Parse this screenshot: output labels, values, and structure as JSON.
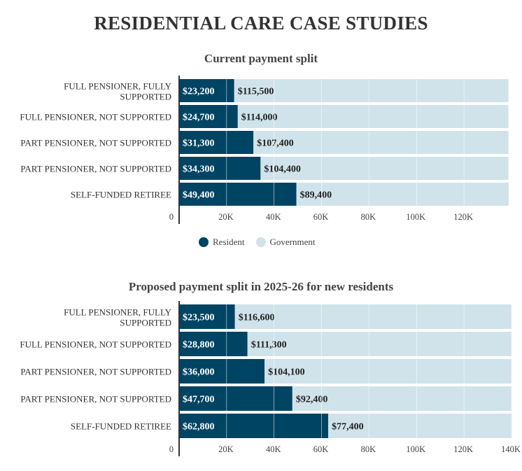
{
  "title": "RESIDENTIAL CARE CASE STUDIES",
  "colors": {
    "resident": "#004464",
    "government": "#d0e3eb"
  },
  "legend": {
    "resident": "Resident",
    "government": "Government"
  },
  "chart_data": [
    {
      "type": "bar",
      "stacked": true,
      "orientation": "horizontal",
      "title": "Current payment split",
      "categories": [
        "FULL PENSIONER, FULLY SUPPORTED",
        "FULL PENSIONER, NOT SUPPORTED",
        "PART PENSIONER, NOT SUPPORTED",
        "PART PENSIONER, NOT SUPPORTED",
        "SELF-FUNDED RETIREE"
      ],
      "series": [
        {
          "name": "Resident",
          "values": [
            23200,
            24700,
            31300,
            34300,
            49400
          ],
          "labels": [
            "$23,200",
            "$24,700",
            "$31,300",
            "$34,300",
            "$49,400"
          ]
        },
        {
          "name": "Government",
          "values": [
            115500,
            114000,
            107400,
            104400,
            89400
          ],
          "labels": [
            "$115,500",
            "$114,000",
            "$107,400",
            "$104,400",
            "$89,400"
          ]
        }
      ],
      "xticks": [
        "0",
        "20K",
        "40K",
        "60K",
        "80K",
        "100K",
        "120K"
      ],
      "xlim": [
        0,
        140000
      ],
      "legend": "bottom-center"
    },
    {
      "type": "bar",
      "stacked": true,
      "orientation": "horizontal",
      "title": "Proposed payment split in 2025-26 for new residents",
      "categories": [
        "FULL PENSIONER, FULLY SUPPORTED",
        "FULL PENSIONER, NOT SUPPORTED",
        "PART PENSIONER, NOT SUPPORTED",
        "PART PENSIONER, NOT SUPPORTED",
        "SELF-FUNDED RETIREE"
      ],
      "series": [
        {
          "name": "Resident",
          "values": [
            23500,
            28800,
            36000,
            47700,
            62800
          ],
          "labels": [
            "$23,500",
            "$28,800",
            "$36,000",
            "$47,700",
            "$62,800"
          ]
        },
        {
          "name": "Government",
          "values": [
            116600,
            111300,
            104100,
            92400,
            77400
          ],
          "labels": [
            "$116,600",
            "$111,300",
            "$104,100",
            "$92,400",
            "$77,400"
          ]
        }
      ],
      "xticks": [
        "0",
        "20K",
        "40K",
        "60K",
        "80K",
        "100K",
        "120K",
        "140K"
      ],
      "xlim": [
        0,
        140000
      ]
    }
  ]
}
